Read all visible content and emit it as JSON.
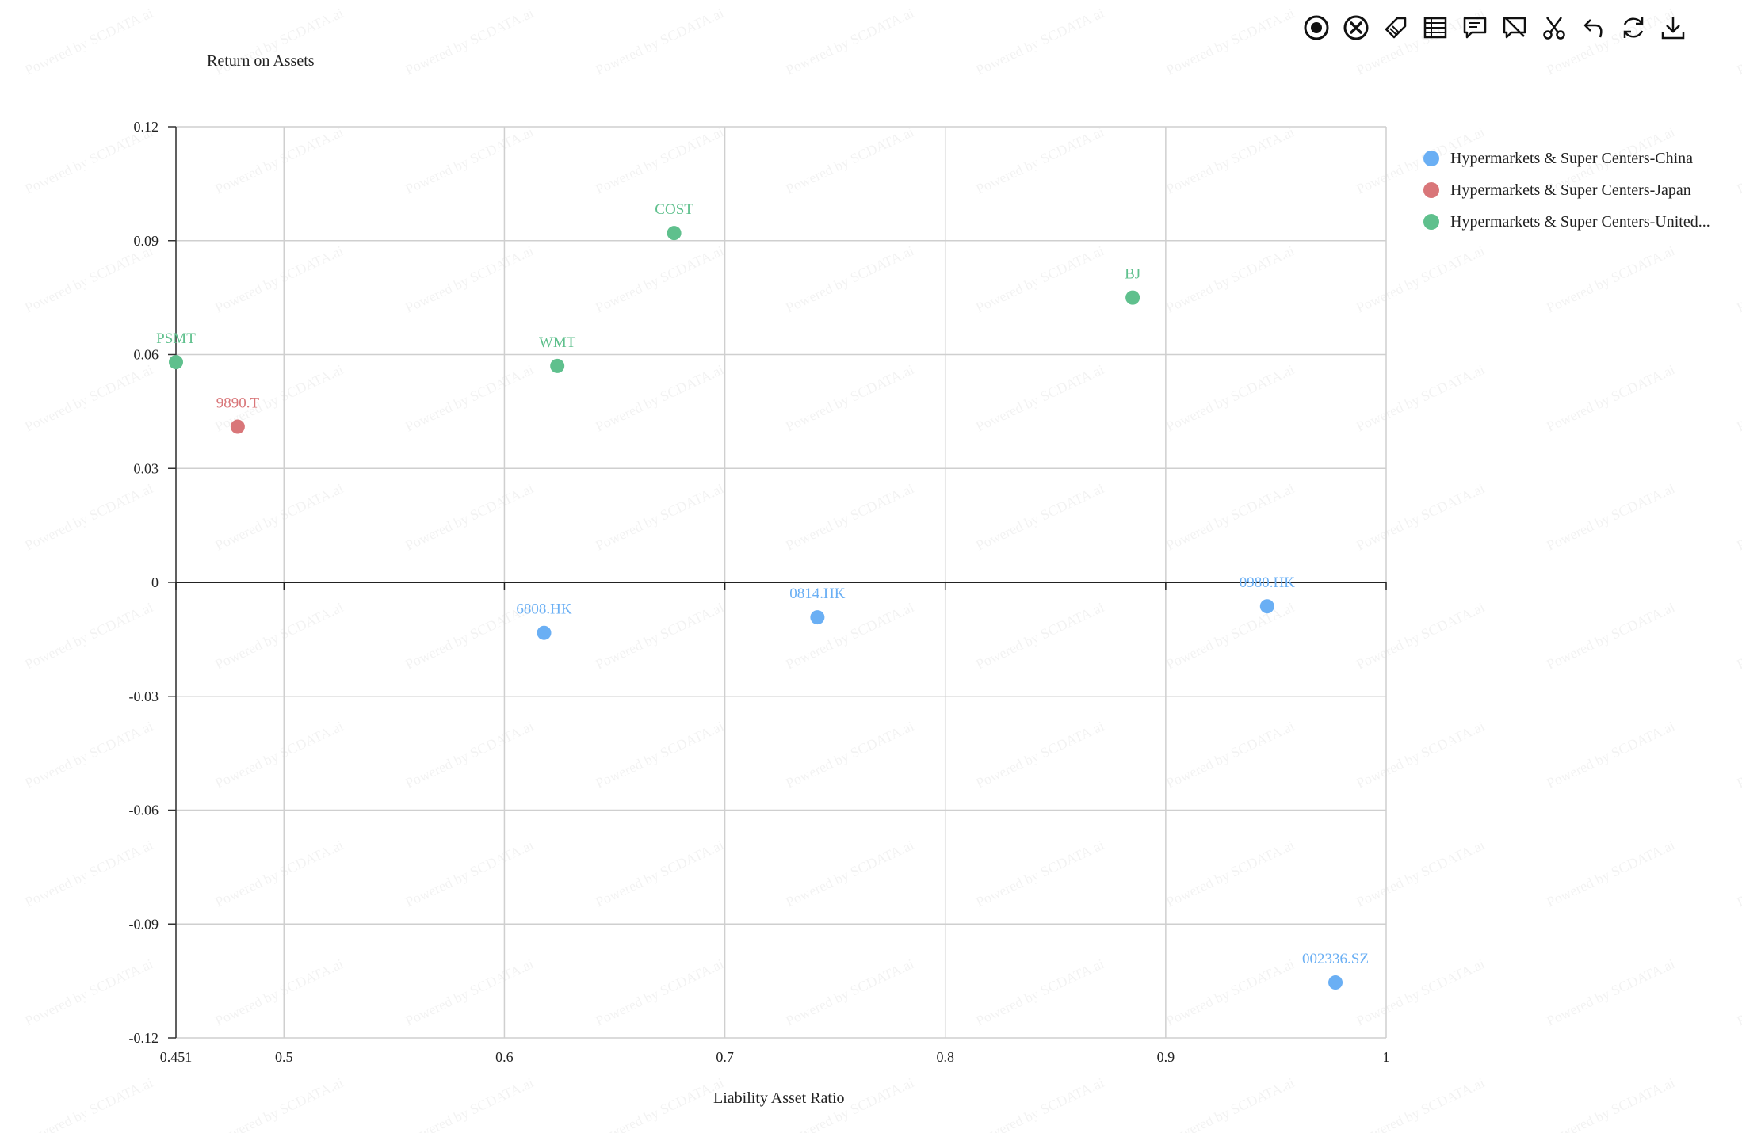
{
  "chart_data": {
    "type": "scatter",
    "title": "",
    "xlabel": "Liability Asset Ratio",
    "ylabel": "Return on Assets",
    "xlim": [
      0.451,
      1
    ],
    "ylim": [
      -0.12,
      0.12
    ],
    "x_ticks": [
      0.451,
      0.5,
      0.6,
      0.7,
      0.8,
      0.9,
      1
    ],
    "x_tick_labels": [
      "0.451",
      "0.5",
      "0.6",
      "0.7",
      "0.8",
      "0.9",
      "1"
    ],
    "y_ticks": [
      0.12,
      0.09,
      0.06,
      0.03,
      0,
      -0.03,
      -0.06,
      -0.09,
      -0.12
    ],
    "y_tick_labels": [
      "0.12",
      "0.09",
      "0.06",
      "0.03",
      "0",
      "-0.03",
      "-0.06",
      "-0.09",
      "-0.12"
    ],
    "grid": true,
    "legend_position": "top-right",
    "series": [
      {
        "name": "Hypermarkets & Super Centers-China",
        "color": "#6aaff4",
        "points": [
          {
            "label": "6808.HK",
            "x": 0.618,
            "y": -0.0133
          },
          {
            "label": "0814.HK",
            "x": 0.742,
            "y": -0.0092
          },
          {
            "label": "0980.HK",
            "x": 0.946,
            "y": -0.0063
          },
          {
            "label": "002336.SZ",
            "x": 0.977,
            "y": -0.1054
          }
        ]
      },
      {
        "name": "Hypermarkets & Super Centers-Japan",
        "color": "#d97679",
        "points": [
          {
            "label": "9890.T",
            "x": 0.479,
            "y": 0.041
          }
        ]
      },
      {
        "name": "Hypermarkets & Super Centers-United...",
        "color": "#5fc08d",
        "points": [
          {
            "label": "PSMT",
            "x": 0.451,
            "y": 0.058
          },
          {
            "label": "WMT",
            "x": 0.624,
            "y": 0.057
          },
          {
            "label": "COST",
            "x": 0.677,
            "y": 0.092
          },
          {
            "label": "BJ",
            "x": 0.885,
            "y": 0.075
          }
        ]
      }
    ]
  },
  "toolbar": {
    "icons": [
      "target-icon",
      "close-circle-icon",
      "tag-icon",
      "table-icon",
      "comment-icon",
      "no-comment-icon",
      "scissors-icon",
      "undo-icon",
      "refresh-icon",
      "download-icon"
    ]
  },
  "watermark": "Powered by SCDATA.ai"
}
